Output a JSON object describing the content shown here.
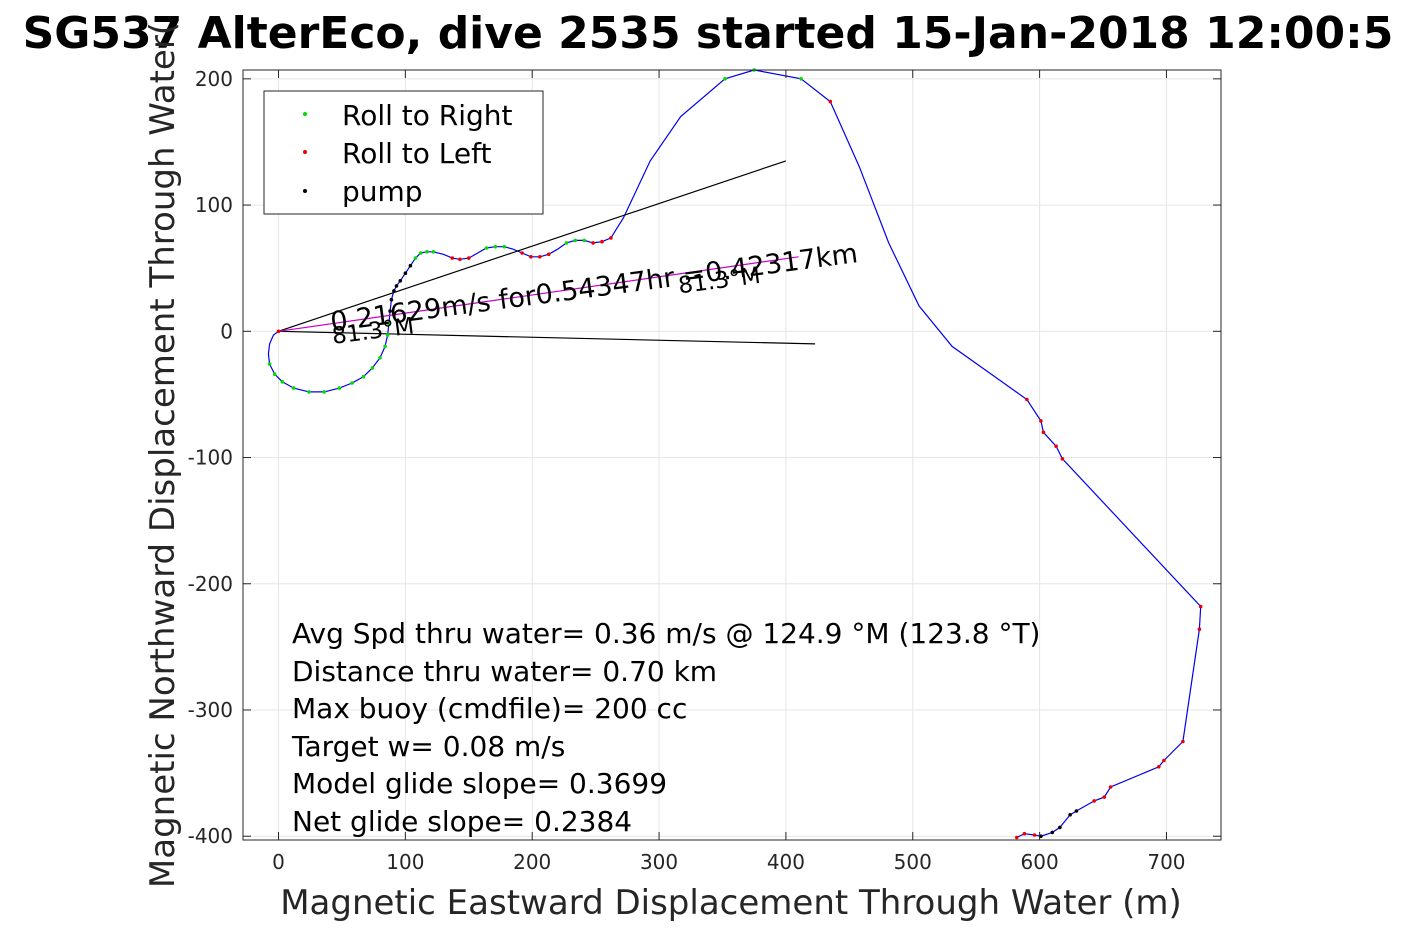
{
  "chart_data": {
    "type": "line",
    "title": "SG537 AlterEco, dive 2535 started 15-Jan-2018 12:00:5",
    "xlabel": "Magnetic Eastward Displacement Through Water (m)",
    "ylabel": "Magnetic Northward Displacement Through Water(",
    "xlim": [
      -28,
      743
    ],
    "ylim": [
      -403,
      207
    ],
    "xticks": [
      0,
      100,
      200,
      300,
      400,
      500,
      600,
      700
    ],
    "yticks": [
      200,
      100,
      0,
      -100,
      -200,
      -300,
      -400
    ],
    "grid": true,
    "legend_position": "top-left",
    "legend": [
      {
        "label": "Roll to Right",
        "color": "#00dd00"
      },
      {
        "label": "Roll to Left",
        "color": "#ee0000"
      },
      {
        "label": "pump",
        "color": "#000000"
      }
    ],
    "series": [
      {
        "kind": "track",
        "color": "#0000ee",
        "points": [
          [
            0,
            0
          ],
          [
            -4,
            -3
          ],
          [
            -7,
            -10
          ],
          [
            -8,
            -18
          ],
          [
            -7,
            -26
          ],
          [
            -3,
            -34
          ],
          [
            3,
            -40
          ],
          [
            12,
            -45
          ],
          [
            24,
            -48
          ],
          [
            36,
            -48
          ],
          [
            48,
            -45
          ],
          [
            58,
            -41
          ],
          [
            67,
            -36
          ],
          [
            74,
            -29
          ],
          [
            80,
            -21
          ],
          [
            84,
            -12
          ],
          [
            86,
            -3
          ],
          [
            87,
            6
          ],
          [
            88,
            16
          ],
          [
            89,
            25
          ],
          [
            91,
            32
          ],
          [
            93,
            36
          ],
          [
            96,
            40
          ],
          [
            100,
            46
          ],
          [
            104,
            52
          ],
          [
            108,
            58
          ],
          [
            112,
            62
          ],
          [
            117,
            63
          ],
          [
            122,
            63
          ],
          [
            130,
            61
          ],
          [
            137,
            58
          ],
          [
            143,
            57
          ],
          [
            150,
            58
          ],
          [
            157,
            62
          ],
          [
            164,
            66
          ],
          [
            171,
            67
          ],
          [
            178,
            67
          ],
          [
            185,
            65
          ],
          [
            192,
            62
          ],
          [
            199,
            59
          ],
          [
            206,
            59
          ],
          [
            213,
            61
          ],
          [
            220,
            65
          ],
          [
            227,
            70
          ],
          [
            234,
            72
          ],
          [
            241,
            72
          ],
          [
            248,
            70
          ],
          [
            255,
            71
          ],
          [
            262,
            74
          ],
          [
            272,
            90
          ],
          [
            293,
            135
          ],
          [
            317,
            170
          ],
          [
            352,
            200
          ],
          [
            375,
            207
          ],
          [
            412,
            200
          ],
          [
            435,
            182
          ],
          [
            458,
            130
          ],
          [
            481,
            70
          ],
          [
            505,
            20
          ],
          [
            531,
            -12
          ],
          [
            590,
            -54
          ],
          [
            601,
            -71
          ],
          [
            603,
            -80
          ],
          [
            613,
            -91
          ],
          [
            618,
            -101
          ],
          [
            727,
            -218
          ],
          [
            726,
            -236
          ],
          [
            713,
            -325
          ],
          [
            698,
            -340
          ],
          [
            694,
            -345
          ],
          [
            656,
            -361
          ],
          [
            651,
            -369
          ],
          [
            643,
            -372
          ],
          [
            629,
            -380
          ],
          [
            624,
            -383
          ],
          [
            616,
            -393
          ],
          [
            610,
            -397
          ],
          [
            601,
            -400
          ],
          [
            596,
            -399
          ],
          [
            588,
            -398
          ],
          [
            582,
            -401
          ]
        ]
      },
      {
        "kind": "ray",
        "label": "heading-ray",
        "color": "#000000",
        "points": [
          [
            0,
            0
          ],
          [
            400,
            135
          ]
        ]
      },
      {
        "kind": "ray",
        "label": "average-ray",
        "color": "#000000",
        "points": [
          [
            0,
            0
          ],
          [
            423,
            -10
          ]
        ]
      },
      {
        "kind": "ray",
        "label": "net-course",
        "color": "#cc00cc",
        "points": [
          [
            0,
            0
          ],
          [
            410,
            59
          ]
        ]
      },
      {
        "kind": "markers",
        "name": "Roll to Right",
        "color": "#00dd00",
        "points": [
          [
            -7,
            -26
          ],
          [
            -3,
            -34
          ],
          [
            3,
            -40
          ],
          [
            12,
            -45
          ],
          [
            24,
            -48
          ],
          [
            36,
            -48
          ],
          [
            48,
            -45
          ],
          [
            58,
            -41
          ],
          [
            67,
            -36
          ],
          [
            74,
            -29
          ],
          [
            80,
            -21
          ],
          [
            84,
            -12
          ],
          [
            86,
            -3
          ],
          [
            87,
            6
          ],
          [
            108,
            58
          ],
          [
            112,
            62
          ],
          [
            117,
            63
          ],
          [
            122,
            63
          ],
          [
            164,
            66
          ],
          [
            171,
            67
          ],
          [
            178,
            67
          ],
          [
            227,
            70
          ],
          [
            234,
            72
          ],
          [
            241,
            72
          ],
          [
            352,
            200
          ],
          [
            375,
            207
          ],
          [
            412,
            200
          ]
        ]
      },
      {
        "kind": "markers",
        "name": "Roll to Left",
        "color": "#ee0000",
        "points": [
          [
            0,
            0
          ],
          [
            137,
            58
          ],
          [
            143,
            57
          ],
          [
            150,
            58
          ],
          [
            192,
            62
          ],
          [
            199,
            59
          ],
          [
            206,
            59
          ],
          [
            213,
            61
          ],
          [
            248,
            70
          ],
          [
            255,
            71
          ],
          [
            262,
            74
          ],
          [
            435,
            182
          ],
          [
            590,
            -54
          ],
          [
            601,
            -71
          ],
          [
            603,
            -80
          ],
          [
            613,
            -91
          ],
          [
            618,
            -101
          ],
          [
            727,
            -218
          ],
          [
            726,
            -236
          ],
          [
            713,
            -325
          ],
          [
            698,
            -340
          ],
          [
            694,
            -345
          ],
          [
            656,
            -361
          ],
          [
            651,
            -369
          ],
          [
            643,
            -372
          ],
          [
            596,
            -399
          ],
          [
            588,
            -398
          ],
          [
            582,
            -401
          ]
        ]
      },
      {
        "kind": "markers",
        "name": "pump",
        "color": "#000000",
        "points": [
          [
            88,
            16
          ],
          [
            89,
            25
          ],
          [
            91,
            32
          ],
          [
            93,
            36
          ],
          [
            96,
            40
          ],
          [
            100,
            46
          ],
          [
            104,
            52
          ],
          [
            629,
            -380
          ],
          [
            624,
            -383
          ],
          [
            616,
            -393
          ],
          [
            610,
            -397
          ],
          [
            601,
            -400
          ]
        ]
      }
    ],
    "annotations": [
      {
        "text": "0.21629m/s for0.54347hr =0.42317km",
        "x": 42,
        "y": 0,
        "rotate": -7.5,
        "size": 27
      },
      {
        "text": "81.3°M",
        "x": 43,
        "y": -10,
        "rotate": -7.5,
        "size": 23
      },
      {
        "text": "81.3°M",
        "x": 316,
        "y": 30,
        "rotate": -7.5,
        "size": 23
      }
    ],
    "stats": [
      "Avg Spd thru water=  0.36 m/s @ 124.9 °M (123.8 °T)",
      "Distance thru water=  0.70 km",
      "Max buoy (cmdfile)= 200 cc",
      "Target w= 0.08 m/s",
      "Model glide slope= 0.3699",
      "Net glide slope= 0.2384"
    ]
  }
}
